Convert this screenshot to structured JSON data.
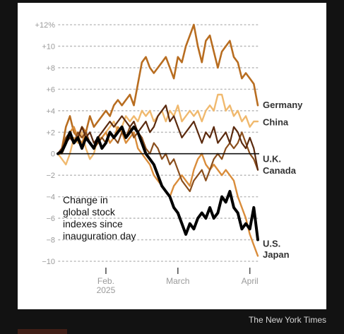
{
  "chart_data": {
    "type": "line",
    "ylim": [
      -10,
      12
    ],
    "yticks": [
      {
        "value": 12,
        "label": "+12%"
      },
      {
        "value": 10,
        "label": "+10"
      },
      {
        "value": 8,
        "label": "+8"
      },
      {
        "value": 6,
        "label": "+6"
      },
      {
        "value": 4,
        "label": "+4"
      },
      {
        "value": 2,
        "label": "+2"
      },
      {
        "value": 0,
        "label": "0"
      },
      {
        "value": -2,
        "label": "−2"
      },
      {
        "value": -4,
        "label": "−4"
      },
      {
        "value": -6,
        "label": "−6"
      },
      {
        "value": -8,
        "label": "−8"
      },
      {
        "value": -10,
        "label": "−10"
      }
    ],
    "xlim": [
      0,
      50
    ],
    "xticks": [
      {
        "value": 12,
        "lines": [
          "Feb.",
          "2025"
        ]
      },
      {
        "value": 30,
        "lines": [
          "March"
        ]
      },
      {
        "value": 48,
        "lines": [
          "April"
        ]
      }
    ],
    "annotation": [
      "Change in",
      "global stock",
      "indexes since",
      "inauguration day"
    ],
    "series": [
      {
        "name": "Germany",
        "label_lines": [
          "Germany"
        ],
        "color": "#b86d20",
        "width": 2.6,
        "values": [
          0,
          0.5,
          2.5,
          3.5,
          2.0,
          1.5,
          2.5,
          2.0,
          3.5,
          2.5,
          3.0,
          3.5,
          4.0,
          3.5,
          4.5,
          5.0,
          4.5,
          5.0,
          5.5,
          4.5,
          6.5,
          8.5,
          9.0,
          8.0,
          7.5,
          8.0,
          8.5,
          9.0,
          8.0,
          7.0,
          9.0,
          8.5,
          10.0,
          11.0,
          12.0,
          10.0,
          8.5,
          10.5,
          11.0,
          9.5,
          8.0,
          9.5,
          10.0,
          10.5,
          9.0,
          8.5,
          7.0,
          7.5,
          7.0,
          6.5,
          4.5
        ],
        "label_y": 4.5
      },
      {
        "name": "China",
        "label_lines": [
          "China"
        ],
        "color": "#f0b96e",
        "width": 2.4,
        "values": [
          0,
          -0.5,
          -1.0,
          0.0,
          1.5,
          1.0,
          2.0,
          0.5,
          -0.5,
          0.0,
          1.5,
          1.5,
          2.0,
          2.5,
          3.0,
          2.0,
          2.5,
          3.5,
          3.0,
          3.5,
          3.0,
          4.0,
          3.5,
          4.0,
          3.0,
          3.5,
          4.0,
          3.0,
          4.0,
          3.5,
          4.5,
          3.0,
          3.5,
          4.0,
          3.5,
          4.0,
          3.0,
          4.0,
          4.5,
          4.0,
          5.5,
          5.5,
          4.0,
          4.5,
          3.5,
          4.0,
          3.0,
          3.5,
          2.5,
          3.0,
          3.0
        ],
        "label_y": 2.9
      },
      {
        "name": "U.K.",
        "label_lines": [
          "U.K."
        ],
        "color": "#5b2a0e",
        "width": 2.2,
        "values": [
          0,
          0.5,
          1.0,
          1.5,
          1.0,
          1.5,
          2.5,
          1.5,
          2.0,
          1.0,
          1.5,
          2.0,
          2.5,
          3.0,
          2.5,
          3.0,
          3.5,
          3.0,
          2.5,
          3.0,
          2.0,
          2.5,
          3.0,
          2.0,
          2.5,
          3.5,
          4.0,
          4.5,
          3.0,
          3.5,
          2.5,
          1.5,
          2.0,
          2.5,
          3.0,
          2.0,
          1.0,
          2.0,
          1.5,
          2.5,
          1.0,
          1.5,
          2.0,
          1.0,
          2.5,
          2.0,
          1.0,
          0.5,
          1.5,
          0.5,
          -1.5
        ],
        "label_y": -0.5
      },
      {
        "name": "Canada",
        "label_lines": [
          "Canada"
        ],
        "color": "#8a4e1c",
        "width": 2.2,
        "values": [
          0,
          0.5,
          1.5,
          2.0,
          1.0,
          2.0,
          1.5,
          2.0,
          1.0,
          0.5,
          1.0,
          1.5,
          1.0,
          2.0,
          1.5,
          1.0,
          2.0,
          1.5,
          2.5,
          1.5,
          2.0,
          1.5,
          0.5,
          0.0,
          1.0,
          0.5,
          -0.5,
          0.0,
          -1.0,
          -0.5,
          -1.5,
          -2.5,
          -3.0,
          -3.5,
          -2.5,
          -2.0,
          -1.5,
          -2.5,
          -1.5,
          -0.5,
          0.0,
          -0.5,
          0.5,
          1.0,
          0.5,
          1.0,
          2.0,
          1.0,
          0.0,
          -0.5,
          -1.5
        ],
        "label_y": -1.6
      },
      {
        "name": "U.S.",
        "label_lines": [
          "U.S."
        ],
        "color": "#000000",
        "width": 4.0,
        "values": [
          0,
          0.2,
          1.0,
          2.0,
          1.0,
          1.5,
          0.5,
          1.5,
          1.0,
          0.5,
          1.5,
          0.5,
          1.0,
          2.0,
          1.5,
          2.0,
          2.5,
          1.5,
          2.0,
          2.5,
          2.0,
          1.0,
          0.0,
          -0.5,
          -1.0,
          -2.0,
          -3.0,
          -3.5,
          -4.0,
          -5.0,
          -5.5,
          -6.5,
          -7.5,
          -6.5,
          -7.0,
          -6.0,
          -5.5,
          -6.0,
          -5.0,
          -6.0,
          -5.5,
          -4.0,
          -4.5,
          -3.5,
          -5.0,
          -5.5,
          -7.0,
          -6.5,
          -7.0,
          -5.0,
          -8.0
        ],
        "label_y": -8.4
      },
      {
        "name": "Japan",
        "label_lines": [
          "Japan"
        ],
        "color": "#d98c3a",
        "width": 2.4,
        "values": [
          0,
          0.0,
          1.0,
          2.0,
          2.5,
          1.5,
          1.0,
          2.0,
          1.0,
          0.5,
          1.0,
          1.5,
          2.0,
          1.0,
          1.5,
          2.5,
          2.0,
          1.0,
          1.5,
          2.0,
          0.5,
          0.0,
          -0.5,
          -1.0,
          -2.0,
          -2.5,
          -3.0,
          -3.5,
          -4.0,
          -3.0,
          -2.5,
          -2.0,
          -2.5,
          -3.0,
          -1.5,
          -0.5,
          0.0,
          -1.0,
          -1.5,
          -1.0,
          -1.5,
          -2.0,
          -1.5,
          -2.0,
          -2.5,
          -4.0,
          -5.0,
          -6.0,
          -7.5,
          -8.5,
          -9.5
        ],
        "label_y": -9.4
      }
    ]
  },
  "credit": "The New York Times"
}
